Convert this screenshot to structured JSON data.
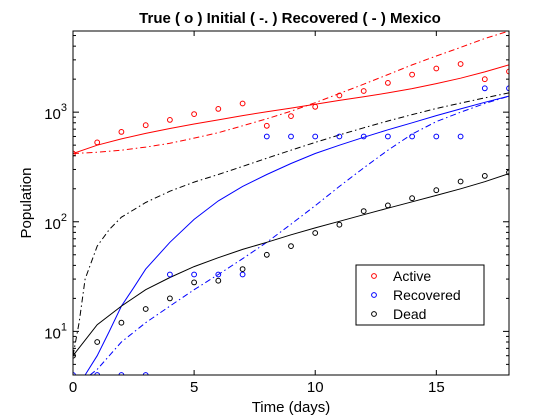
{
  "chart_data": {
    "type": "scatter",
    "title": "True ( o ) Initial ( -. ) Recovered ( - ) Mexico",
    "xlabel": "Time (days)",
    "ylabel": "Population",
    "xlim": [
      0,
      18
    ],
    "ylim": [
      4,
      5500
    ],
    "yscale": "log",
    "x_ticks": [
      0,
      5,
      10,
      15
    ],
    "y_ticks": [
      {
        "value": 10,
        "base": "10",
        "exp": "1"
      },
      {
        "value": 100,
        "base": "10",
        "exp": "2"
      },
      {
        "value": 1000,
        "base": "10",
        "exp": "3"
      }
    ],
    "grid": false,
    "legend_position": "bottom-right",
    "series": [
      {
        "name": "Active",
        "color": "#ff0000",
        "true_x": [
          0,
          1,
          2,
          3,
          4,
          5,
          6,
          7,
          8,
          9,
          10,
          11,
          12,
          13,
          14,
          15,
          16,
          17,
          18
        ],
        "true_y": [
          420,
          530,
          660,
          760,
          850,
          960,
          1070,
          1200,
          750,
          920,
          1120,
          1420,
          1560,
          1850,
          2200,
          2500,
          2750,
          2000,
          2350
        ],
        "initial_x": [
          0,
          1,
          2,
          3,
          4,
          5,
          6,
          7,
          8,
          9,
          10,
          11,
          12,
          13,
          14,
          15,
          16,
          17,
          18
        ],
        "initial_y": [
          420,
          430,
          450,
          480,
          520,
          580,
          650,
          750,
          870,
          1020,
          1220,
          1480,
          1800,
          2200,
          2700,
          3250,
          3900,
          4700,
          5500
        ],
        "recovered_x": [
          0,
          1,
          2,
          3,
          4,
          5,
          6,
          7,
          8,
          9,
          10,
          11,
          12,
          13,
          14,
          15,
          16,
          17,
          18
        ],
        "recovered_y": [
          420,
          500,
          570,
          640,
          710,
          780,
          850,
          930,
          1010,
          1090,
          1180,
          1280,
          1380,
          1500,
          1640,
          1820,
          2040,
          2330,
          2700
        ]
      },
      {
        "name": "Recovered",
        "color": "#0000ff",
        "true_x": [
          0,
          1,
          2,
          3,
          4,
          5,
          6,
          7,
          8,
          9,
          10,
          11,
          12,
          13,
          14,
          15,
          16,
          17,
          18
        ],
        "true_y": [
          4,
          4,
          4,
          4,
          33,
          33,
          33,
          33,
          600,
          600,
          600,
          600,
          600,
          600,
          600,
          600,
          600,
          1650,
          1650
        ],
        "initial_x": [
          0.7,
          1,
          1.5,
          2,
          3,
          4,
          5,
          6,
          7,
          8,
          9,
          10,
          11,
          12,
          13,
          14,
          15,
          16,
          17,
          18
        ],
        "initial_y": [
          4,
          4.5,
          6,
          8,
          12,
          17,
          24,
          33,
          46,
          65,
          95,
          140,
          210,
          310,
          450,
          630,
          820,
          1000,
          1200,
          1400
        ],
        "recovered_x": [
          0.5,
          1,
          1.5,
          2,
          2.5,
          3,
          4,
          5,
          6,
          7,
          8,
          9,
          10,
          11,
          12,
          13,
          14,
          15,
          16,
          17,
          18
        ],
        "recovered_y": [
          4,
          6,
          10,
          17,
          25,
          37,
          65,
          105,
          155,
          210,
          270,
          340,
          420,
          500,
          590,
          690,
          800,
          930,
          1070,
          1230,
          1400
        ]
      },
      {
        "name": "Dead",
        "color": "#000000",
        "true_x": [
          0,
          1,
          2,
          3,
          4,
          5,
          6,
          7,
          8,
          9,
          10,
          11,
          12,
          13,
          14,
          15,
          16,
          17,
          18
        ],
        "true_y": [
          6,
          8,
          12,
          16,
          20,
          28,
          29,
          37,
          50,
          60,
          79,
          94,
          125,
          141,
          164,
          194,
          233,
          262,
          282
        ],
        "initial_x": [
          0,
          0.25,
          0.5,
          1,
          1.5,
          2,
          3,
          4,
          5,
          6,
          7,
          8,
          9,
          10,
          11,
          12,
          13,
          14,
          15,
          16,
          17,
          18
        ],
        "initial_y": [
          6,
          12,
          30,
          60,
          85,
          110,
          150,
          190,
          230,
          270,
          320,
          380,
          450,
          530,
          620,
          720,
          830,
          950,
          1080,
          1210,
          1350,
          1500
        ],
        "recovered_x": [
          0,
          1,
          2,
          3,
          4,
          5,
          6,
          7,
          8,
          9,
          10,
          11,
          12,
          13,
          14,
          15,
          16,
          17,
          18
        ],
        "recovered_y": [
          6,
          11.5,
          17,
          24,
          31,
          39,
          47,
          56,
          65,
          76,
          88,
          101,
          116,
          133,
          152,
          174,
          200,
          232,
          275
        ]
      }
    ]
  }
}
